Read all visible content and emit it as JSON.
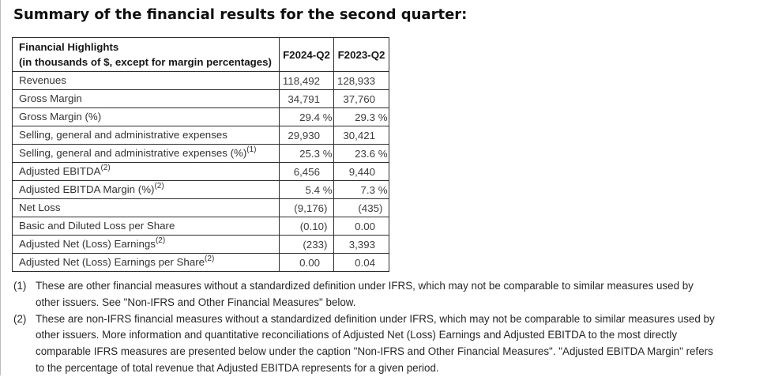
{
  "title": "Summary of the financial results for the second quarter:",
  "table": {
    "header": {
      "label_line1": "Financial Highlights",
      "label_line2": "(in thousands of $, except for margin percentages)",
      "col_2024": "F2024-Q2",
      "col_2023": "F2023-Q2"
    },
    "rows": [
      {
        "label": "Revenues",
        "sup": "",
        "f2024_q2": "118,492",
        "f2023_q2": "128,933"
      },
      {
        "label": "Gross Margin",
        "sup": "",
        "f2024_q2": "34,791",
        "f2023_q2": "37,760"
      },
      {
        "label": "Gross Margin (%)",
        "sup": "",
        "f2024_q2": "29.4 %",
        "f2023_q2": "29.3 %"
      },
      {
        "label": "Selling, general and administrative expenses",
        "sup": "",
        "f2024_q2": "29,930",
        "f2023_q2": "30,421"
      },
      {
        "label": "Selling, general and administrative expenses (%)",
        "sup": "(1)",
        "f2024_q2": "25.3 %",
        "f2023_q2": "23.6 %"
      },
      {
        "label": "Adjusted EBITDA",
        "sup": "(2)",
        "f2024_q2": "6,456",
        "f2023_q2": "9,440"
      },
      {
        "label": "Adjusted EBITDA Margin (%)",
        "sup": "(2)",
        "f2024_q2": "5.4 %",
        "f2023_q2": "7.3 %"
      },
      {
        "label": "Net Loss",
        "sup": "",
        "f2024_q2": "(9,176)",
        "f2023_q2": "(435)"
      },
      {
        "label": "Basic and Diluted Loss per Share",
        "sup": "",
        "f2024_q2": "(0.10)",
        "f2023_q2": "0.00"
      },
      {
        "label": "Adjusted Net (Loss) Earnings",
        "sup": "(2)",
        "f2024_q2": "(233)",
        "f2023_q2": "3,393"
      },
      {
        "label": "Adjusted Net (Loss) Earnings per Share",
        "sup": "(2)",
        "f2024_q2": "0.00",
        "f2023_q2": "0.04"
      }
    ]
  },
  "footnotes": [
    {
      "marker": "(1)",
      "text": "These are other financial measures without a standardized definition under IFRS, which may not be comparable to similar measures used by other issuers. See \"Non-IFRS and Other Financial Measures\" below."
    },
    {
      "marker": "(2)",
      "text": "These are non-IFRS financial measures without a standardized definition under IFRS, which may not be comparable to similar measures used by other issuers. More information and quantitative reconciliations of Adjusted Net (Loss) Earnings and Adjusted EBITDA to the most directly comparable IFRS measures are presented below under the caption \"Non-IFRS and Other Financial Measures\". \"Adjusted EBITDA Margin\" refers to the percentage of total revenue that Adjusted EBITDA represents for a given period."
    }
  ]
}
